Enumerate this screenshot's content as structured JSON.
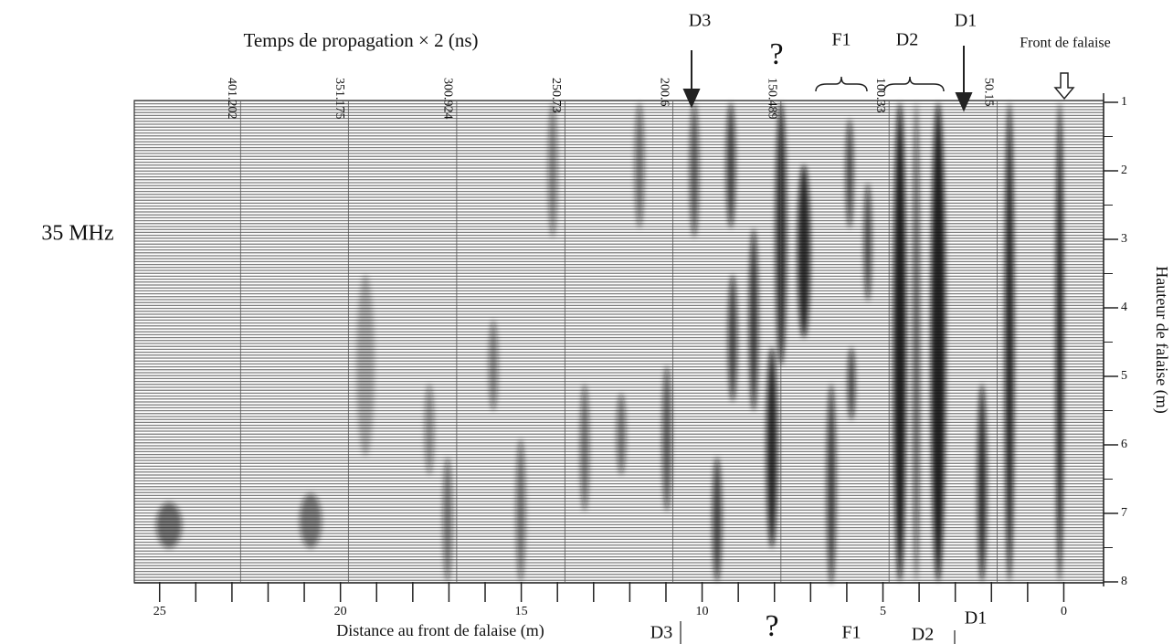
{
  "title": "Temps de propagation × 2 (ns)",
  "frequency_label": "35 MHz",
  "chart_data": {
    "type": "radargram",
    "xlabel": "Distance au front de falaise (m)",
    "ylabel": "Hauteur de falaise (m)",
    "xlim": [
      25.7,
      -1.1
    ],
    "xticks": [
      25,
      20,
      15,
      10,
      5,
      0
    ],
    "xminorticks": [
      24,
      23,
      22,
      21,
      19,
      18,
      17,
      16,
      14,
      13,
      12,
      11,
      9,
      8,
      7,
      6,
      4,
      3,
      2,
      1
    ],
    "ylim": [
      8,
      1
    ],
    "yticks": [
      1,
      2,
      3,
      4,
      5,
      6,
      7,
      8
    ],
    "yminorticks": [
      1.5,
      2.5,
      3.5,
      4.5,
      5.5,
      6.5,
      7.5
    ],
    "x2lim": [
      450.5,
      0.8
    ],
    "x2ticks": [
      401.202,
      351.175,
      300.924,
      250.73,
      200.6,
      150.489,
      100.33,
      50.15
    ],
    "annotations_top": [
      "D3",
      "?",
      "F1",
      "D2",
      "D1",
      "Front de falaise"
    ],
    "annotations_bottom": [
      "D3",
      "?",
      "F1",
      "D2",
      "D1"
    ]
  }
}
